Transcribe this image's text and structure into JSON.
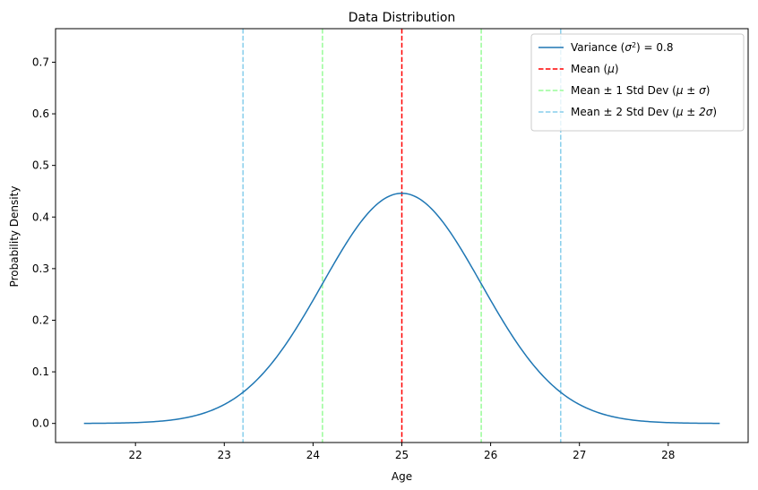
{
  "chart_data": {
    "type": "line",
    "title": "Data Distribution",
    "xlabel": "Age",
    "ylabel": "Probability Density",
    "xlim": [
      21.1,
      28.9
    ],
    "ylim": [
      -0.037,
      0.765
    ],
    "xticks": [
      22,
      23,
      24,
      25,
      26,
      27,
      28
    ],
    "yticks": [
      0.0,
      0.1,
      0.2,
      0.3,
      0.4,
      0.5,
      0.6,
      0.7
    ],
    "grid": false,
    "legend_position": "top-right",
    "curve": {
      "label_prefix": "Variance (",
      "label_math": "σ",
      "label_sup": "2",
      "label_suffix": ") = 0.8",
      "color": "#1f77b4",
      "mean": 25,
      "variance": 0.8,
      "x_range": [
        21.42,
        28.58
      ],
      "peak_density": 0.446
    },
    "vlines": [
      {
        "legend": "Mean (",
        "legend_math": "μ",
        "legend_end": ")",
        "x": [
          25.0
        ],
        "color": "#ff0000"
      },
      {
        "legend": "Mean ± 1 Std Dev (",
        "legend_math": "μ ± σ",
        "legend_end": ")",
        "x": [
          24.106,
          25.894
        ],
        "color": "#98fb98"
      },
      {
        "legend": "Mean ± 2 Std Dev (",
        "legend_math": "μ ± 2σ",
        "legend_end": ")",
        "x": [
          23.211,
          26.789
        ],
        "color": "#87ceeb"
      }
    ]
  }
}
